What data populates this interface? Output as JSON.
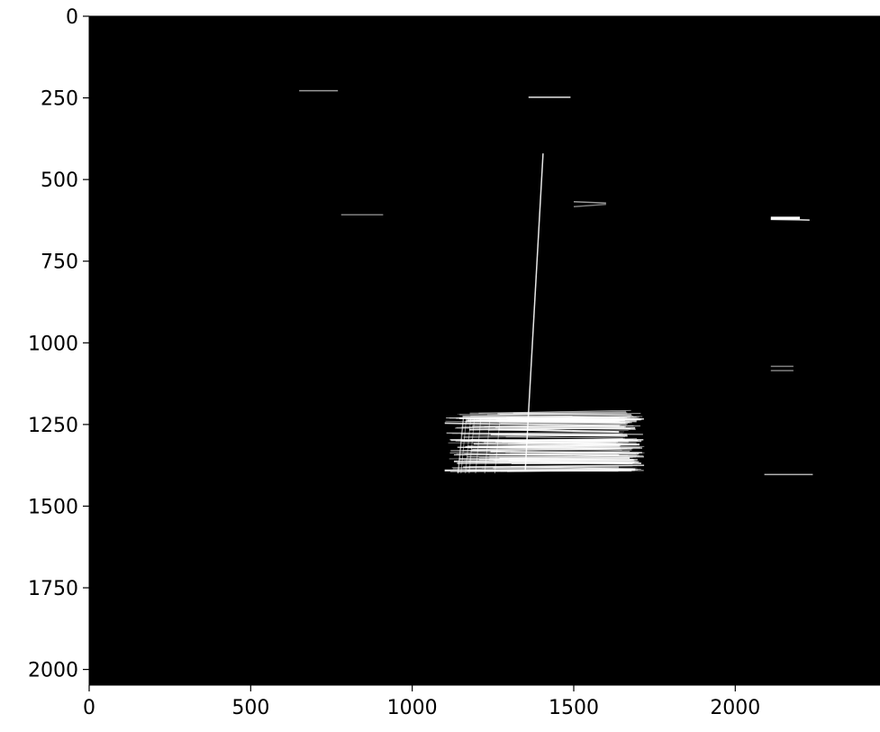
{
  "chart_data": {
    "type": "heatmap",
    "title": "",
    "xlabel": "",
    "ylabel": "",
    "xlim": [
      0,
      2448
    ],
    "ylim": [
      2048,
      0
    ],
    "xticks": [
      0,
      500,
      1000,
      1500,
      2000
    ],
    "yticks": [
      0,
      250,
      500,
      750,
      1000,
      1250,
      1500,
      1750,
      2000
    ],
    "xtick_labels": [
      "0",
      "500",
      "1000",
      "1500",
      "2000"
    ],
    "ytick_labels": [
      "0",
      "250",
      "500",
      "750",
      "1000",
      "1250",
      "1500",
      "1750",
      "2000"
    ],
    "colormap": "gray",
    "background_color": "#000000",
    "foreground_color": "#ffffff",
    "features": [
      {
        "kind": "line",
        "x": [
          650,
          770
        ],
        "y": [
          228,
          228
        ],
        "intensity": 0.6
      },
      {
        "kind": "line",
        "x": [
          1360,
          1490
        ],
        "y": [
          248,
          248
        ],
        "intensity": 0.9
      },
      {
        "kind": "line",
        "x": [
          780,
          910
        ],
        "y": [
          608,
          608
        ],
        "intensity": 0.5
      },
      {
        "kind": "line",
        "x": [
          1500,
          1600
        ],
        "y": [
          568,
          572
        ],
        "intensity": 0.6
      },
      {
        "kind": "line",
        "x": [
          1500,
          1600
        ],
        "y": [
          583,
          576
        ],
        "intensity": 0.5
      },
      {
        "kind": "line",
        "x": [
          2110,
          2200
        ],
        "y": [
          618,
          618
        ],
        "intensity": 1.0
      },
      {
        "kind": "line",
        "x": [
          2110,
          2230
        ],
        "y": [
          622,
          624
        ],
        "intensity": 0.9
      },
      {
        "kind": "line",
        "x": [
          2110,
          2180
        ],
        "y": [
          1072,
          1072
        ],
        "intensity": 0.5
      },
      {
        "kind": "line",
        "x": [
          2110,
          2180
        ],
        "y": [
          1085,
          1085
        ],
        "intensity": 0.5
      },
      {
        "kind": "line",
        "x": [
          2090,
          2240
        ],
        "y": [
          1403,
          1403
        ],
        "intensity": 0.7
      },
      {
        "kind": "line",
        "x": [
          1405,
          1350
        ],
        "y": [
          420,
          1390
        ],
        "intensity": 0.9
      },
      {
        "kind": "region",
        "x": [
          1100,
          1720
        ],
        "y": [
          1215,
          1400
        ],
        "intensity": 0.9
      }
    ]
  }
}
